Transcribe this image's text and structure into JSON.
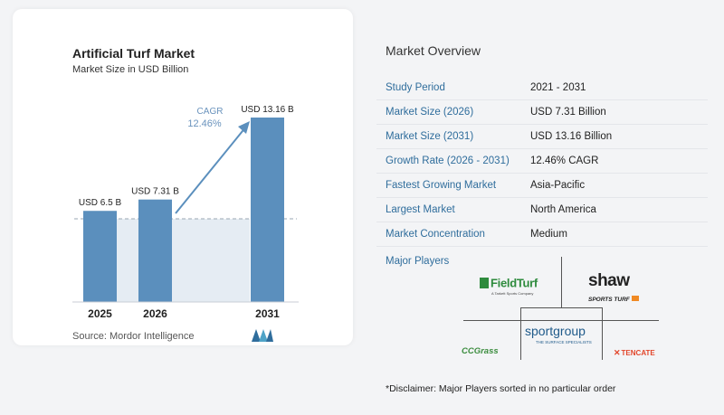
{
  "chart_card": {
    "title": "Artificial Turf Market",
    "subtitle": "Market Size in USD Billion",
    "source": "Source:  Mordor Intelligence"
  },
  "chart_data": {
    "type": "bar",
    "categories": [
      "2025",
      "2026",
      "2031"
    ],
    "values": [
      6.5,
      7.31,
      13.16
    ],
    "value_labels": [
      "USD 6.5 B",
      "USD 7.31 B",
      "USD 13.16 B"
    ],
    "cagr_label": "CAGR",
    "cagr_value": "12.46%",
    "title": "Artificial Turf Market",
    "subtitle": "Market Size in USD Billion",
    "bar_color": "#5b8fbd",
    "baseline_fill": "#e5ecf3"
  },
  "overview": {
    "title": "Market Overview",
    "rows": [
      {
        "key": "Study Period",
        "value": "2021 - 2031"
      },
      {
        "key": "Market Size (2026)",
        "value": "USD 7.31 Billion"
      },
      {
        "key": "Market Size (2031)",
        "value": "USD 13.16 Billion"
      },
      {
        "key": "Growth Rate (2026 - 2031)",
        "value": "12.46% CAGR"
      },
      {
        "key": "Fastest Growing Market",
        "value": "Asia-Pacific"
      },
      {
        "key": "Largest Market",
        "value": "North America"
      },
      {
        "key": "Market Concentration",
        "value": "Medium"
      }
    ]
  },
  "players": {
    "title": "Major Players",
    "fieldturf": "FieldTurf",
    "fieldturf_sub": "A Tarkett Sports Company",
    "shaw": "shaw",
    "shaw_sub": "SPORTS TURF",
    "sportgroup": "sportgroup",
    "sportgroup_sub": "THE SURFACE SPECIALISTS",
    "ccgrass": "CCGrass",
    "tencate": "TENCATE"
  },
  "disclaimer": "*Disclaimer: Major Players sorted in no particular order",
  "colors": {
    "accent": "#2f6d9c",
    "bar": "#5b8fbd"
  }
}
